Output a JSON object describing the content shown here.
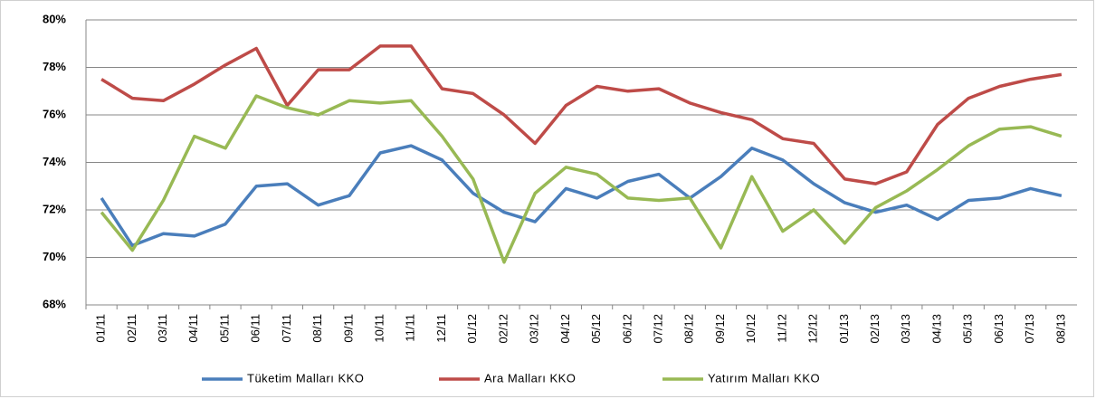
{
  "chart_data": {
    "type": "line",
    "categories": [
      "01/11",
      "02/11",
      "03/11",
      "04/11",
      "05/11",
      "06/11",
      "07/11",
      "08/11",
      "09/11",
      "10/11",
      "11/11",
      "12/11",
      "01/12",
      "02/12",
      "03/12",
      "04/12",
      "05/12",
      "06/12",
      "07/12",
      "08/12",
      "09/12",
      "10/12",
      "11/12",
      "12/12",
      "01/13",
      "02/13",
      "03/13",
      "04/13",
      "05/13",
      "06/13",
      "07/13",
      "08/13"
    ],
    "series": [
      {
        "name": "Tüketim Malları KKO",
        "color": "#4a7ebb",
        "values": [
          72.5,
          70.5,
          71.0,
          70.9,
          71.4,
          73.0,
          73.1,
          72.2,
          72.6,
          74.4,
          74.7,
          74.1,
          72.7,
          71.9,
          71.5,
          72.9,
          72.5,
          73.2,
          73.5,
          72.5,
          73.4,
          74.6,
          74.1,
          73.1,
          72.3,
          71.9,
          72.2,
          71.6,
          72.4,
          72.5,
          72.9,
          72.6
        ]
      },
      {
        "name": "Ara Malları KKO",
        "color": "#be4b48",
        "values": [
          77.5,
          76.7,
          76.6,
          77.3,
          78.1,
          78.8,
          76.4,
          77.9,
          77.9,
          78.9,
          78.9,
          77.1,
          76.9,
          76.0,
          74.8,
          76.4,
          77.2,
          77.0,
          77.1,
          76.5,
          76.1,
          75.8,
          75.0,
          74.8,
          73.3,
          73.1,
          73.6,
          75.6,
          76.7,
          77.2,
          77.5,
          77.7
        ]
      },
      {
        "name": "Yatırım Malları KKO",
        "color": "#98b954",
        "values": [
          71.9,
          70.3,
          72.4,
          75.1,
          74.6,
          76.8,
          76.3,
          76.0,
          76.6,
          76.5,
          76.6,
          75.1,
          73.3,
          69.8,
          72.7,
          73.8,
          73.5,
          72.5,
          72.4,
          72.5,
          70.4,
          73.4,
          71.1,
          72.0,
          70.6,
          72.1,
          72.8,
          73.7,
          74.7,
          75.4,
          75.5,
          75.1
        ]
      }
    ],
    "ylim": [
      68,
      80
    ],
    "yticks": [
      {
        "value": 68,
        "label": "68%"
      },
      {
        "value": 70,
        "label": "70%"
      },
      {
        "value": 72,
        "label": "72%"
      },
      {
        "value": 74,
        "label": "74%"
      },
      {
        "value": 76,
        "label": "76%"
      },
      {
        "value": 78,
        "label": "78%"
      },
      {
        "value": 80,
        "label": "80%"
      }
    ],
    "grid": true,
    "legend": "bottom"
  }
}
